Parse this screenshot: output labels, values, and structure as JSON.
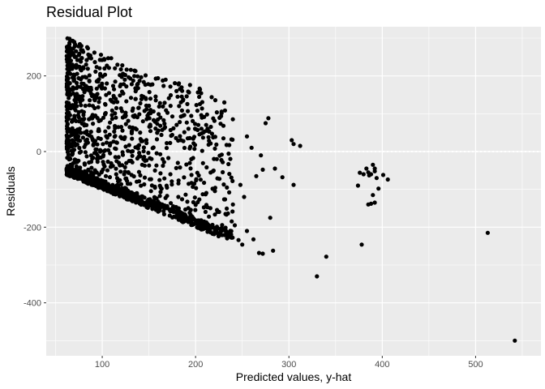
{
  "chart_data": {
    "type": "scatter",
    "title": "Residual Plot",
    "xlabel": "Predicted values, y-hat",
    "ylabel": "Residuals",
    "xlim": [
      40,
      570
    ],
    "ylim": [
      -540,
      330
    ],
    "x_ticks": [
      100,
      200,
      300,
      400,
      500
    ],
    "y_ticks": [
      -400,
      -200,
      0,
      200
    ],
    "hline": 0,
    "grid": true,
    "colors": {
      "panel": "#ebebeb",
      "grid": "#ffffff",
      "points": "#000000",
      "hline": "#ffffff"
    },
    "cluster": {
      "description_points": "dense band of residuals between predicted 62-240",
      "x_range": [
        62,
        240
      ],
      "upper_left": [
        [
          62,
          300
        ],
        [
          90,
          272
        ],
        [
          150,
          205
        ],
        [
          200,
          175
        ],
        [
          240,
          120
        ]
      ],
      "lower_edge": [
        [
          62,
          -62
        ],
        [
          100,
          -100
        ],
        [
          150,
          -150
        ],
        [
          200,
          -200
        ],
        [
          230,
          -230
        ]
      ]
    },
    "points": [
      [
        65,
        298
      ],
      [
        70,
        290
      ],
      [
        72,
        265
      ],
      [
        75,
        255
      ],
      [
        68,
        230
      ],
      [
        80,
        220
      ],
      [
        78,
        180
      ],
      [
        66,
        150
      ],
      [
        70,
        120
      ],
      [
        64,
        60
      ],
      [
        68,
        30
      ],
      [
        70,
        5
      ],
      [
        66,
        -35
      ],
      [
        72,
        -50
      ],
      [
        260,
        10
      ],
      [
        255,
        40
      ],
      [
        265,
        -65
      ],
      [
        270,
        -10
      ],
      [
        275,
        75
      ],
      [
        278,
        88
      ],
      [
        285,
        -45
      ],
      [
        272,
        -48
      ],
      [
        293,
        -68
      ],
      [
        283,
        -262
      ],
      [
        268,
        -268
      ],
      [
        272,
        -270
      ],
      [
        262,
        -232
      ],
      [
        250,
        -246
      ],
      [
        246,
        -234
      ],
      [
        255,
        -210
      ],
      [
        242,
        -195
      ],
      [
        280,
        -175
      ],
      [
        232,
        -165
      ],
      [
        240,
        -140
      ],
      [
        236,
        -108
      ],
      [
        248,
        -88
      ],
      [
        252,
        -120
      ],
      [
        303,
        30
      ],
      [
        305,
        20
      ],
      [
        312,
        15
      ],
      [
        305,
        -88
      ],
      [
        330,
        -330
      ],
      [
        340,
        -278
      ],
      [
        378,
        -246
      ],
      [
        374,
        -90
      ],
      [
        376,
        -56
      ],
      [
        380,
        -60
      ],
      [
        383,
        -45
      ],
      [
        385,
        -55
      ],
      [
        386,
        -63
      ],
      [
        388,
        -60
      ],
      [
        390,
        -35
      ],
      [
        392,
        -52
      ],
      [
        394,
        -70
      ],
      [
        396,
        -98
      ],
      [
        390,
        -115
      ],
      [
        388,
        -138
      ],
      [
        392,
        -135
      ],
      [
        385,
        -140
      ],
      [
        401,
        -62
      ],
      [
        406,
        -74
      ],
      [
        392,
        -45
      ],
      [
        513,
        -215
      ],
      [
        542,
        -500
      ]
    ]
  }
}
